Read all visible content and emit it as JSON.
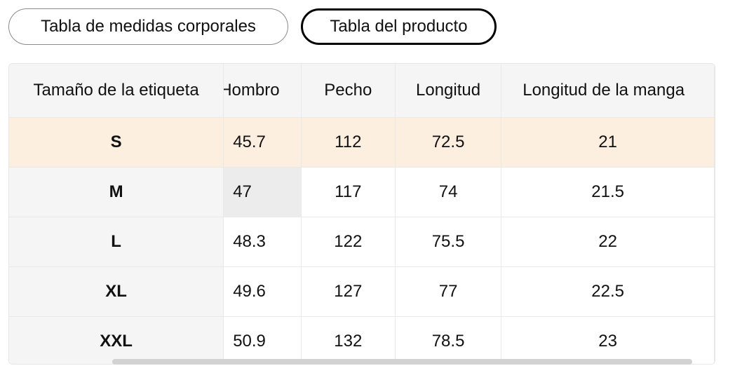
{
  "tabs": [
    {
      "label": "Tabla de medidas corporales",
      "active": false
    },
    {
      "label": "Tabla del producto",
      "active": true
    }
  ],
  "table": {
    "headers": [
      "Tamaño de la etiqueta",
      "Hombro",
      "Pecho",
      "Longitud",
      "Longitud de la manga"
    ],
    "rows": [
      [
        "S",
        "45.7",
        "112",
        "72.5",
        "21"
      ],
      [
        "M",
        "47",
        "117",
        "74",
        "21.5"
      ],
      [
        "L",
        "48.3",
        "122",
        "75.5",
        "22"
      ],
      [
        "XL",
        "49.6",
        "127",
        "77",
        "22.5"
      ],
      [
        "XXL",
        "50.9",
        "132",
        "78.5",
        "23"
      ]
    ]
  },
  "colors": {
    "highlight_row": "#fdefe0",
    "header_bg": "#f5f5f5",
    "active_tab_border": "#000000"
  }
}
